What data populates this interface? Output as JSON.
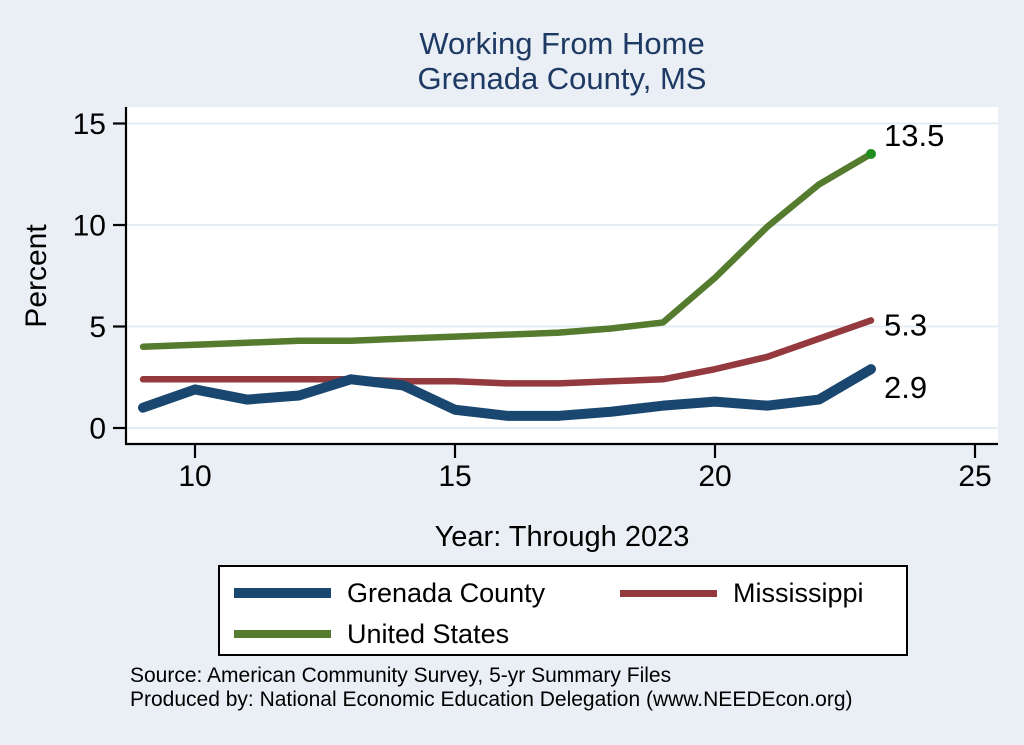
{
  "title": {
    "line1": "Working From Home",
    "line2": "Grenada County, MS",
    "color": "#1e3a64"
  },
  "chart_data": {
    "type": "line",
    "title": "Working From Home — Grenada County, MS",
    "xlabel": "Year: Through 2023",
    "ylabel": "Percent",
    "x": [
      9,
      10,
      11,
      12,
      13,
      14,
      15,
      16,
      17,
      18,
      19,
      20,
      21,
      22,
      23
    ],
    "x_ticks": [
      10,
      15,
      20,
      25
    ],
    "y_ticks": [
      0,
      5,
      10,
      15
    ],
    "xlim": [
      8.7,
      25.4
    ],
    "ylim": [
      -0.8,
      15.8
    ],
    "grid": true,
    "grid_color": "#e2ebf2",
    "plot_bg": "#ffffff",
    "axis_color": "#000000",
    "legend_position": "bottom",
    "series": [
      {
        "name": "Grenada County",
        "color": "#1a476f",
        "line_width": 10,
        "end_label": "2.9",
        "values": [
          1.0,
          1.9,
          1.4,
          1.6,
          2.4,
          2.1,
          0.9,
          0.6,
          0.6,
          0.8,
          1.1,
          1.3,
          1.1,
          1.4,
          2.9
        ]
      },
      {
        "name": "Mississippi",
        "color": "#943a3e",
        "line_width": 6.5,
        "end_label": "5.3",
        "values": [
          2.4,
          2.4,
          2.4,
          2.4,
          2.4,
          2.3,
          2.3,
          2.2,
          2.2,
          2.3,
          2.4,
          2.9,
          3.5,
          4.4,
          5.3
        ]
      },
      {
        "name": "United States",
        "color": "#557b2e",
        "line_width": 6.5,
        "end_label": "13.5",
        "end_dot_color": "#1f8e1f",
        "values": [
          4.0,
          4.1,
          4.2,
          4.3,
          4.3,
          4.4,
          4.5,
          4.6,
          4.7,
          4.9,
          5.2,
          7.4,
          9.9,
          12.0,
          13.5
        ]
      }
    ]
  },
  "footer": {
    "line1": "Source: American Community Survey, 5-yr Summary Files",
    "line2": "Produced by: National Economic Education Delegation (www.NEEDEcon.org)"
  }
}
